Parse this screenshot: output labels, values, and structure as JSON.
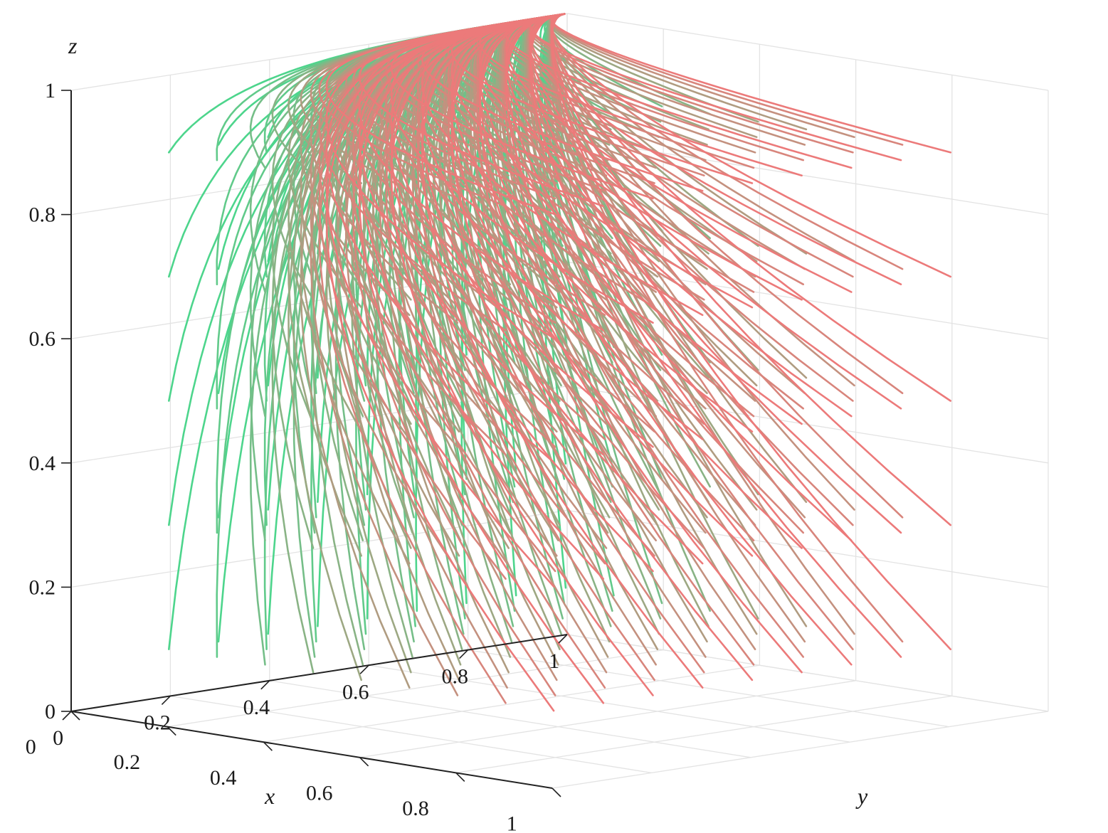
{
  "chart_data": {
    "type": "line",
    "subtype": "3d-trajectories",
    "title": "",
    "xlabel": "x",
    "ylabel": "y",
    "zlabel": "z",
    "xlim": [
      0,
      1
    ],
    "ylim": [
      0,
      1
    ],
    "zlim": [
      0,
      1
    ],
    "xticks": [
      "0",
      "0.2",
      "0.4",
      "0.6",
      "0.8",
      "1"
    ],
    "yticks": [
      "0",
      "0.2",
      "0.4",
      "0.6",
      "0.8",
      "1"
    ],
    "zticks": [
      "0",
      "0.2",
      "0.4",
      "0.6",
      "0.8",
      "1"
    ],
    "grid": true,
    "color_start": "#4dd58c",
    "color_end": "#ec7a7a",
    "initial_x": [
      0.1,
      0.2,
      0.3,
      0.4,
      0.5,
      0.6,
      0.7,
      0.8,
      0.9
    ],
    "initial_y": [
      0.1,
      0.2,
      0.3,
      0.4,
      0.5,
      0.6,
      0.7,
      0.8,
      0.9
    ],
    "initial_z": [
      0.1,
      0.3,
      0.5,
      0.7,
      0.9
    ],
    "convergence_point": {
      "x": 0,
      "y": 1,
      "z": 1
    }
  }
}
